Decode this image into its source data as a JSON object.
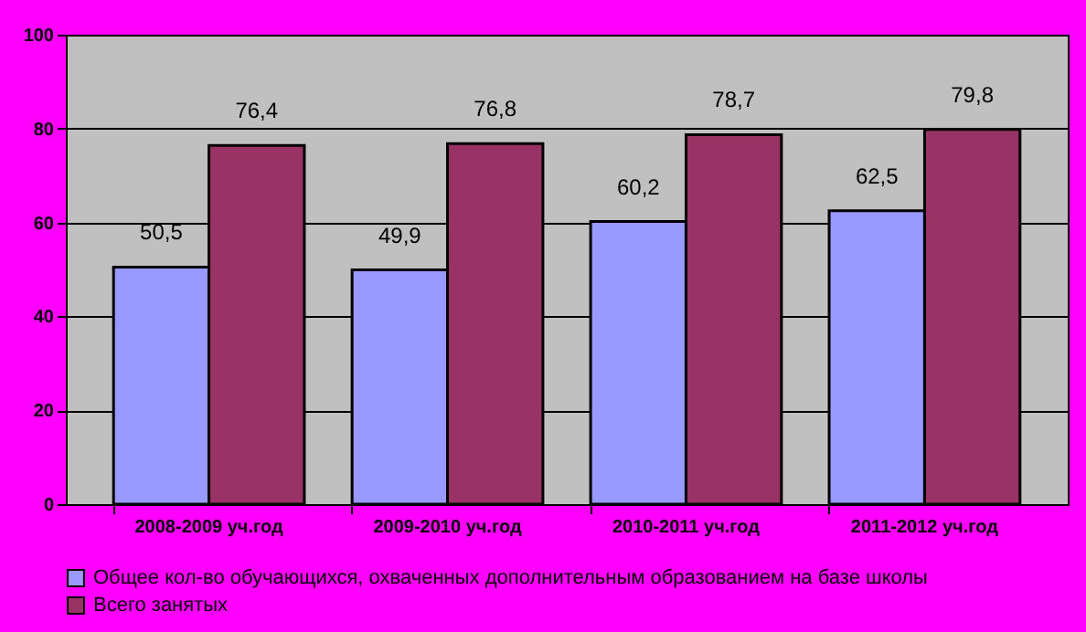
{
  "chart_data": {
    "type": "bar",
    "categories": [
      "2008-2009 уч.год",
      "2009-2010 уч.год",
      "2010-2011 уч.год",
      "2011-2012 уч.год"
    ],
    "series": [
      {
        "name": "Общее кол-во обучающихся, охваченных дополнительным образованием на базе школы",
        "color": "#9999ff",
        "values": [
          50.5,
          49.9,
          60.2,
          62.5
        ],
        "value_labels": [
          "50,5",
          "49,9",
          "60,2",
          "62,5"
        ]
      },
      {
        "name": "Всего занятых",
        "color": "#993366",
        "values": [
          76.4,
          76.8,
          78.7,
          79.8
        ],
        "value_labels": [
          "76,4",
          "76,8",
          "78,7",
          "79,8"
        ]
      }
    ],
    "ylim": [
      0,
      100
    ],
    "yticks": [
      0,
      20,
      40,
      60,
      80,
      100
    ],
    "grid": "y",
    "legend": "bottom"
  }
}
